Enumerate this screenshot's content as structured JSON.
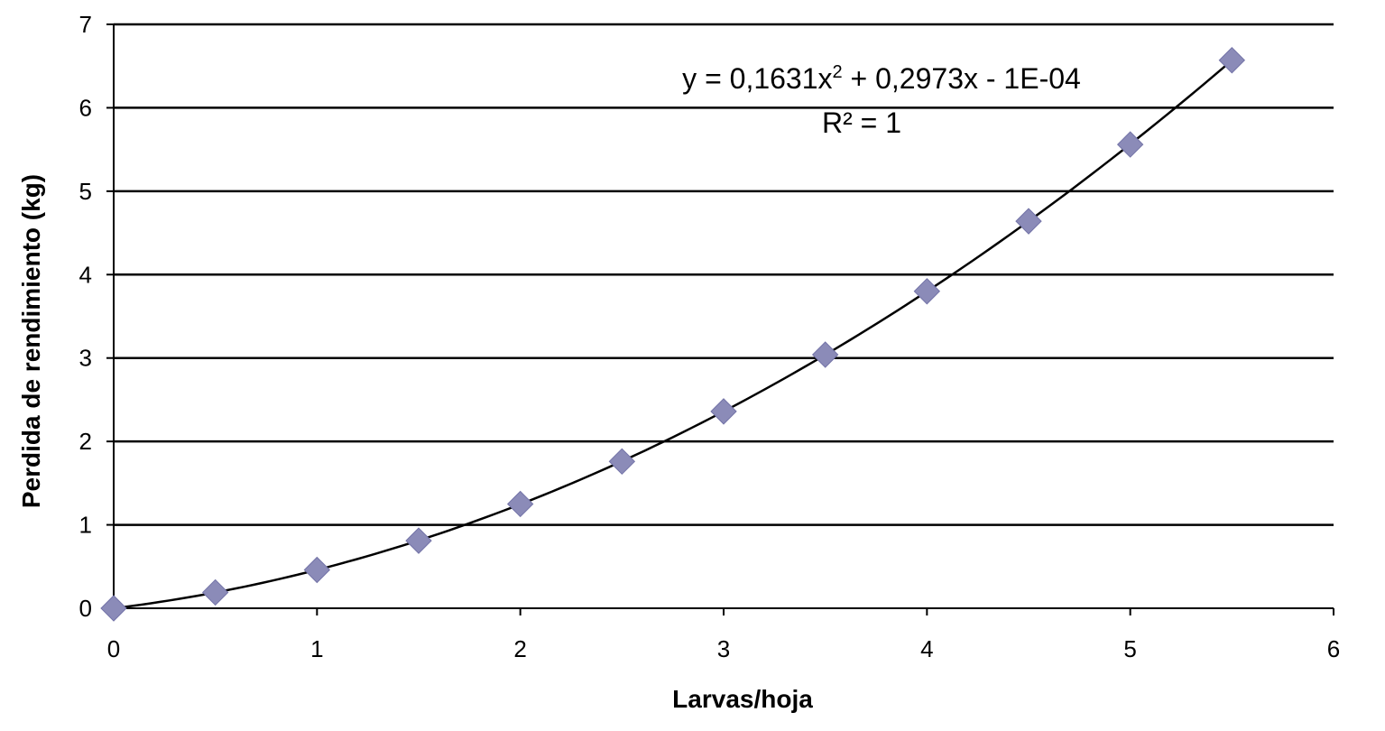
{
  "chart_data": {
    "type": "scatter",
    "title": "",
    "xlabel": "Larvas/hoja",
    "ylabel": "Perdida de rendimiento (kg)",
    "xlim": [
      0,
      6
    ],
    "ylim": [
      0,
      7
    ],
    "x_ticks": [
      0,
      1,
      2,
      3,
      4,
      5,
      6
    ],
    "y_ticks": [
      0,
      1,
      2,
      3,
      4,
      5,
      6,
      7
    ],
    "grid": "horizontal",
    "series": [
      {
        "marker": "diamond",
        "color": "#8B8BB8",
        "x": [
          0,
          0.5,
          1,
          1.5,
          2,
          2.5,
          3,
          3.5,
          4,
          4.5,
          5,
          5.5
        ],
        "y": [
          0,
          0.19,
          0.46,
          0.81,
          1.25,
          1.76,
          2.36,
          3.04,
          3.8,
          4.64,
          5.56,
          6.57
        ]
      }
    ],
    "trendline": {
      "type": "polynomial",
      "order": 2,
      "coefficients": [
        0.1631,
        0.2973,
        -0.0001
      ],
      "color": "#000000",
      "equation": "y = 0,1631x",
      "equation_exp": "2",
      "equation_rest": " + 0,2973x - 1E-04",
      "r2": "R² = 1"
    }
  }
}
